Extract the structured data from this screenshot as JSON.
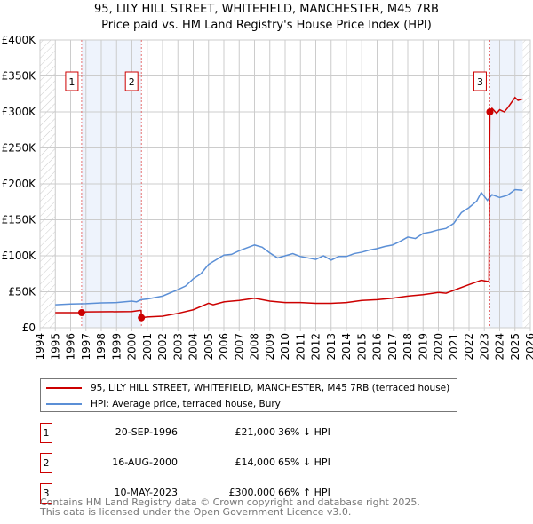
{
  "chart_data": {
    "type": "line",
    "title": "95, LILY HILL STREET, WHITEFIELD, MANCHESTER, M45 7RB",
    "subtitle": "Price paid vs. HM Land Registry's House Price Index (HPI)",
    "xlim": [
      1994,
      2026
    ],
    "ylim": [
      0,
      400000
    ],
    "y_ticks": [
      {
        "v": 0,
        "label": "£0"
      },
      {
        "v": 50000,
        "label": "£50K"
      },
      {
        "v": 100000,
        "label": "£100K"
      },
      {
        "v": 150000,
        "label": "£150K"
      },
      {
        "v": 200000,
        "label": "£200K"
      },
      {
        "v": 250000,
        "label": "£250K"
      },
      {
        "v": 300000,
        "label": "£300K"
      },
      {
        "v": 350000,
        "label": "£350K"
      },
      {
        "v": 400000,
        "label": "£400K"
      }
    ],
    "x_ticks": [
      "1994",
      "1995",
      "1996",
      "1997",
      "1998",
      "1999",
      "2000",
      "2001",
      "2002",
      "2003",
      "2004",
      "2005",
      "2006",
      "2007",
      "2008",
      "2009",
      "2010",
      "2011",
      "2012",
      "2013",
      "2014",
      "2015",
      "2016",
      "2017",
      "2018",
      "2019",
      "2020",
      "2021",
      "2022",
      "2023",
      "2024",
      "2025",
      "2026"
    ],
    "grid": true,
    "series": [
      {
        "name": "95, LILY HILL STREET, WHITEFIELD, MANCHESTER, M45 7RB (terraced house)",
        "color": "#cc0000",
        "x": [
          1995,
          1996.72,
          1997,
          2000,
          2000.5,
          2000.6,
          2000.63,
          2001,
          2002,
          2003,
          2004,
          2005,
          2005.3,
          2006,
          2007,
          2008,
          2009,
          2010,
          2011,
          2012,
          2013,
          2014,
          2015,
          2016,
          2017,
          2018,
          2019,
          2020,
          2020.5,
          2021,
          2022,
          2022.8,
          2023.3,
          2023.36,
          2023.5,
          2023.8,
          2024,
          2024.3,
          2024.5,
          2025,
          2025.2,
          2025.5
        ],
        "y": [
          21000,
          21000,
          22000,
          22500,
          24000,
          24000,
          14000,
          15000,
          16000,
          20000,
          25000,
          34000,
          32000,
          36000,
          38000,
          41000,
          37000,
          35000,
          35000,
          34000,
          34000,
          35000,
          38000,
          39000,
          41000,
          44000,
          46000,
          49000,
          48000,
          52000,
          60000,
          66000,
          64000,
          300000,
          305000,
          298000,
          303000,
          300000,
          305000,
          320000,
          316000,
          318000
        ]
      },
      {
        "name": "HPI: Average price, terraced house, Bury",
        "color": "#5b8fd6",
        "x": [
          1995,
          1996,
          1997,
          1998,
          1999,
          2000,
          2000.3,
          2000.6,
          2001,
          2002,
          2003,
          2003.5,
          2004,
          2004.5,
          2005,
          2005.3,
          2006,
          2006.5,
          2007,
          2007.5,
          2008,
          2008.5,
          2009,
          2009.5,
          2010,
          2010.5,
          2011,
          2011.5,
          2012,
          2012.5,
          2013,
          2013.5,
          2014,
          2014.5,
          2015,
          2015.5,
          2016,
          2016.5,
          2017,
          2017.5,
          2018,
          2018.5,
          2019,
          2019.5,
          2020,
          2020.5,
          2021,
          2021.5,
          2022,
          2022.5,
          2022.8,
          2023.2,
          2023.5,
          2024,
          2024.5,
          2025,
          2025.5
        ],
        "y": [
          32000,
          33000,
          33500,
          34500,
          35000,
          37000,
          36000,
          39000,
          40000,
          44000,
          53000,
          58000,
          68000,
          75000,
          88000,
          92000,
          101000,
          102000,
          107000,
          111000,
          115000,
          112000,
          104000,
          97000,
          100000,
          103000,
          99000,
          97000,
          95000,
          100000,
          94000,
          99000,
          99000,
          103000,
          105000,
          108000,
          110000,
          113000,
          115000,
          120000,
          126000,
          124000,
          131000,
          133000,
          136000,
          138000,
          145000,
          160000,
          167000,
          176000,
          188000,
          177000,
          185000,
          181000,
          184000,
          192000,
          191000
        ]
      }
    ],
    "sales": [
      {
        "id": "1",
        "x": 1996.72,
        "y": 21000
      },
      {
        "id": "2",
        "x": 2000.62,
        "y": 14000
      },
      {
        "id": "3",
        "x": 2023.36,
        "y": 300000
      }
    ],
    "shaded": [
      [
        1996.72,
        2000.62
      ],
      [
        2023.36,
        2025.5
      ]
    ],
    "legend": "below"
  },
  "table": [
    {
      "id": "1",
      "date": "20-SEP-1996",
      "price": "£21,000",
      "hpi": "36% ↓ HPI"
    },
    {
      "id": "2",
      "date": "16-AUG-2000",
      "price": "£14,000",
      "hpi": "65% ↓ HPI"
    },
    {
      "id": "3",
      "date": "10-MAY-2023",
      "price": "£300,000",
      "hpi": "66% ↑ HPI"
    }
  ],
  "footer": {
    "line1": "Contains HM Land Registry data © Crown copyright and database right 2025.",
    "line2": "This data is licensed under the Open Government Licence v3.0."
  }
}
